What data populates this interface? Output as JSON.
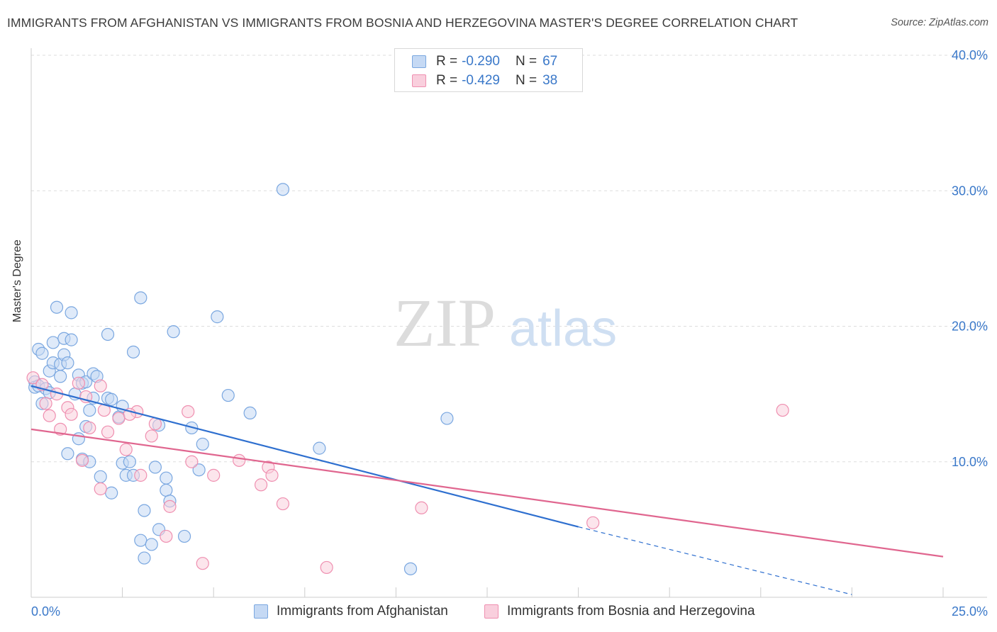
{
  "title": "IMMIGRANTS FROM AFGHANISTAN VS IMMIGRANTS FROM BOSNIA AND HERZEGOVINA MASTER'S DEGREE CORRELATION CHART",
  "source": "Source: ZipAtlas.com",
  "watermark": {
    "zip": "ZIP",
    "atlas": "atlas"
  },
  "legend": {
    "rows": [
      {
        "r_label": "R =",
        "r_value": "-0.290",
        "n_label": "N =",
        "n_value": "67",
        "color": "#7aa7e0",
        "fill": "#c5d9f4"
      },
      {
        "r_label": "R =",
        "r_value": "-0.429",
        "n_label": "N =",
        "n_value": "38",
        "color": "#ef8fb0",
        "fill": "#f9cfdd"
      }
    ]
  },
  "bottom_legend": [
    {
      "label": "Immigrants from Afghanistan",
      "color": "#7aa7e0",
      "fill": "#c5d9f4"
    },
    {
      "label": "Immigrants from Bosnia and Herzegovina",
      "color": "#ef8fb0",
      "fill": "#f9cfdd"
    }
  ],
  "chart_data": {
    "type": "scatter",
    "title": "IMMIGRANTS FROM AFGHANISTAN VS IMMIGRANTS FROM BOSNIA AND HERZEGOVINA MASTER'S DEGREE CORRELATION CHART",
    "xlabel": "",
    "ylabel": "Master's Degree",
    "xlim": [
      0,
      25
    ],
    "ylim": [
      0,
      40
    ],
    "x_tick_labels": [
      "0.0%",
      "25.0%"
    ],
    "y_ticks": [
      10,
      20,
      30,
      40
    ],
    "y_tick_labels": [
      "10.0%",
      "20.0%",
      "30.0%",
      "40.0%"
    ],
    "grid": true,
    "series": [
      {
        "name": "Immigrants from Afghanistan",
        "stroke": "#7aa7e0",
        "fill": "#c5d9f4",
        "line_color": "#2e6fcf",
        "trend": {
          "x0": 0,
          "y0": 15.6,
          "x1": 15.0,
          "y1": 5.2,
          "dash_to_x": 22.5,
          "dash_to_y": 0.2
        },
        "points": [
          [
            0.1,
            15.9
          ],
          [
            0.1,
            15.5
          ],
          [
            0.2,
            15.6
          ],
          [
            0.2,
            18.3
          ],
          [
            0.3,
            14.3
          ],
          [
            0.3,
            18.0
          ],
          [
            0.4,
            15.4
          ],
          [
            0.5,
            16.7
          ],
          [
            0.5,
            15.1
          ],
          [
            0.6,
            17.3
          ],
          [
            0.6,
            18.8
          ],
          [
            0.7,
            21.4
          ],
          [
            0.8,
            17.2
          ],
          [
            0.8,
            16.3
          ],
          [
            0.9,
            17.9
          ],
          [
            0.9,
            19.1
          ],
          [
            1.0,
            17.3
          ],
          [
            1.0,
            10.6
          ],
          [
            1.1,
            21.0
          ],
          [
            1.1,
            19.0
          ],
          [
            1.2,
            15.0
          ],
          [
            1.3,
            11.7
          ],
          [
            1.3,
            16.4
          ],
          [
            1.4,
            10.2
          ],
          [
            1.4,
            15.8
          ],
          [
            1.5,
            15.9
          ],
          [
            1.5,
            12.6
          ],
          [
            1.6,
            10.0
          ],
          [
            1.6,
            13.8
          ],
          [
            1.7,
            16.5
          ],
          [
            1.7,
            14.7
          ],
          [
            1.8,
            16.3
          ],
          [
            1.9,
            8.9
          ],
          [
            2.1,
            19.4
          ],
          [
            2.1,
            14.7
          ],
          [
            2.2,
            14.6
          ],
          [
            2.2,
            7.7
          ],
          [
            2.4,
            13.3
          ],
          [
            2.5,
            9.9
          ],
          [
            2.5,
            14.1
          ],
          [
            2.6,
            9.0
          ],
          [
            2.7,
            10.0
          ],
          [
            2.8,
            18.1
          ],
          [
            2.8,
            9.0
          ],
          [
            3.0,
            22.1
          ],
          [
            3.0,
            4.2
          ],
          [
            3.1,
            6.4
          ],
          [
            3.1,
            2.9
          ],
          [
            3.3,
            3.9
          ],
          [
            3.4,
            9.6
          ],
          [
            3.5,
            12.7
          ],
          [
            3.5,
            5.0
          ],
          [
            3.7,
            8.8
          ],
          [
            3.7,
            7.9
          ],
          [
            3.8,
            7.1
          ],
          [
            3.9,
            19.6
          ],
          [
            4.2,
            4.5
          ],
          [
            4.4,
            12.5
          ],
          [
            4.6,
            9.4
          ],
          [
            4.7,
            11.3
          ],
          [
            5.1,
            20.7
          ],
          [
            5.4,
            14.9
          ],
          [
            6.0,
            13.6
          ],
          [
            6.9,
            30.1
          ],
          [
            7.9,
            11.0
          ],
          [
            10.4,
            2.1
          ],
          [
            11.4,
            13.2
          ]
        ]
      },
      {
        "name": "Immigrants from Bosnia and Herzegovina",
        "stroke": "#ef8fb0",
        "fill": "#f9cfdd",
        "line_color": "#e0668f",
        "trend": {
          "x0": 0,
          "y0": 12.4,
          "x1": 25.0,
          "y1": 3.0
        },
        "points": [
          [
            0.05,
            16.2
          ],
          [
            0.3,
            15.7
          ],
          [
            0.4,
            14.3
          ],
          [
            0.5,
            13.4
          ],
          [
            0.7,
            15.0
          ],
          [
            0.8,
            12.4
          ],
          [
            1.0,
            14.0
          ],
          [
            1.1,
            13.5
          ],
          [
            1.3,
            15.8
          ],
          [
            1.4,
            10.1
          ],
          [
            1.5,
            14.8
          ],
          [
            1.6,
            12.5
          ],
          [
            1.9,
            8.0
          ],
          [
            2.0,
            13.8
          ],
          [
            2.1,
            12.2
          ],
          [
            2.4,
            13.2
          ],
          [
            2.6,
            10.9
          ],
          [
            2.9,
            13.7
          ],
          [
            3.0,
            9.0
          ],
          [
            3.3,
            11.9
          ],
          [
            3.4,
            12.8
          ],
          [
            3.7,
            4.5
          ],
          [
            3.8,
            6.7
          ],
          [
            4.3,
            13.7
          ],
          [
            4.4,
            10.0
          ],
          [
            4.7,
            2.5
          ],
          [
            5.0,
            9.0
          ],
          [
            5.7,
            10.1
          ],
          [
            6.3,
            8.3
          ],
          [
            6.5,
            9.6
          ],
          [
            6.6,
            9.0
          ],
          [
            6.9,
            6.9
          ],
          [
            8.1,
            2.2
          ],
          [
            10.7,
            6.6
          ],
          [
            15.4,
            5.5
          ],
          [
            20.6,
            13.8
          ],
          [
            1.9,
            15.6
          ],
          [
            2.7,
            13.5
          ]
        ]
      }
    ]
  }
}
